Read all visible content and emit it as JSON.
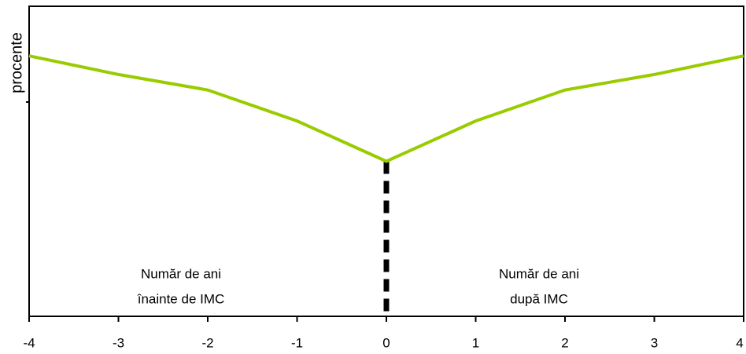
{
  "chart_data": {
    "type": "line",
    "y_label": "procente",
    "x": [
      -4,
      -3,
      -2,
      -1,
      0,
      1,
      2,
      3,
      4
    ],
    "series": [
      {
        "color": "#99cc00",
        "values": [
          84,
          78,
          73,
          63,
          50,
          63,
          73,
          78,
          84
        ]
      }
    ],
    "xlim": [
      -4,
      4
    ],
    "xticks": [
      -4,
      -3,
      -2,
      -1,
      0,
      1,
      2,
      3,
      4
    ],
    "ylim": [
      0,
      100
    ],
    "annotations": [
      [
        "Număr de ani",
        "înainte de IMC"
      ],
      [
        "Număr de ani",
        "după IMC"
      ]
    ]
  }
}
